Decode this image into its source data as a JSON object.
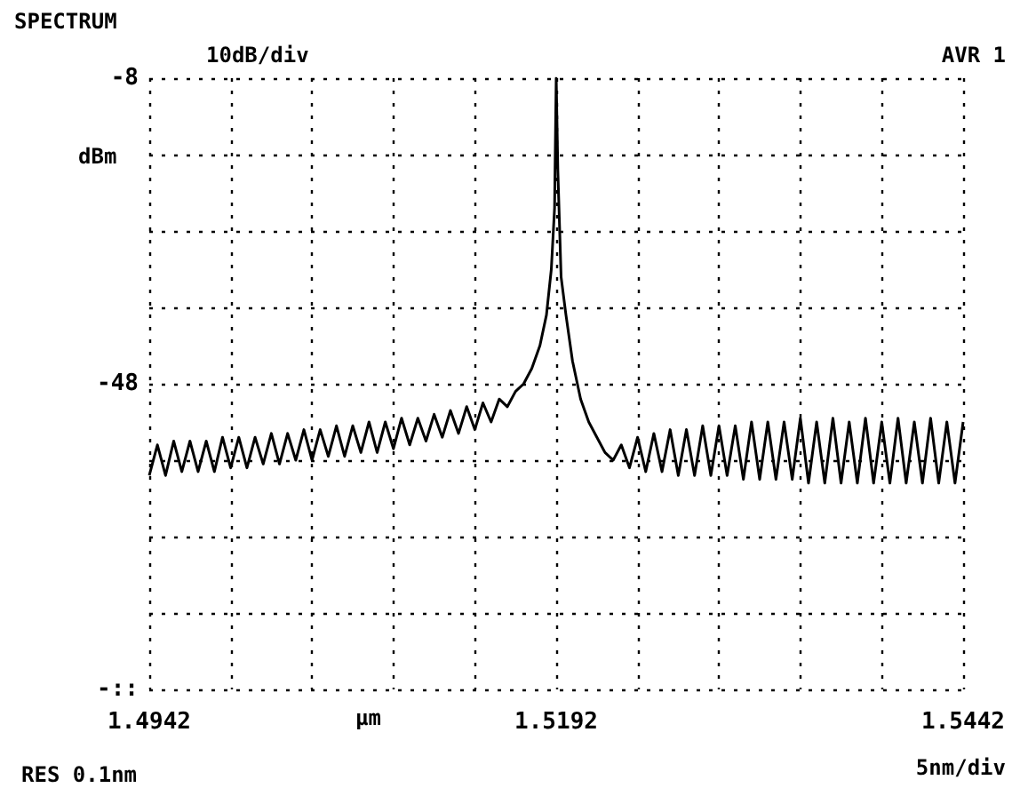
{
  "chart_data": {
    "type": "line",
    "title": "SPECTRUM",
    "xlabel": "µm",
    "ylabel": "dBm",
    "annotations": [
      "10dB/div",
      "AVR 1",
      "RES 0.1nm",
      "5nm/div"
    ],
    "x": [
      1.4942,
      1.4947,
      1.4952,
      1.4957,
      1.4962,
      1.4967,
      1.4972,
      1.4977,
      1.4982,
      1.4987,
      1.4992,
      1.4997,
      1.5002,
      1.5007,
      1.5012,
      1.5017,
      1.5022,
      1.5027,
      1.5032,
      1.5037,
      1.5042,
      1.5047,
      1.5052,
      1.5057,
      1.5062,
      1.5067,
      1.5072,
      1.5077,
      1.5082,
      1.5087,
      1.5092,
      1.5097,
      1.5102,
      1.5107,
      1.5112,
      1.5117,
      1.5122,
      1.5127,
      1.5132,
      1.5137,
      1.5142,
      1.5147,
      1.5152,
      1.5157,
      1.5162,
      1.5167,
      1.5172,
      1.5177,
      1.5182,
      1.5186,
      1.5189,
      1.5191,
      1.5192,
      1.5193,
      1.5195,
      1.5198,
      1.5202,
      1.5207,
      1.5212,
      1.5217,
      1.5222,
      1.5227,
      1.5232,
      1.5237,
      1.5242,
      1.5247,
      1.5252,
      1.5257,
      1.5262,
      1.5267,
      1.5272,
      1.5277,
      1.5282,
      1.5287,
      1.5292,
      1.5297,
      1.5302,
      1.5307,
      1.5312,
      1.5317,
      1.5322,
      1.5327,
      1.5332,
      1.5337,
      1.5342,
      1.5347,
      1.5352,
      1.5357,
      1.5362,
      1.5367,
      1.5372,
      1.5377,
      1.5382,
      1.5387,
      1.5392,
      1.5397,
      1.5402,
      1.5407,
      1.5412,
      1.5417,
      1.5422,
      1.5427,
      1.5432,
      1.5437,
      1.5442
    ],
    "series": [
      {
        "color": "#000000",
        "values": [
          -60,
          -56,
          -60,
          -55.5,
          -59.5,
          -55.5,
          -59.5,
          -55.5,
          -59.5,
          -55,
          -59,
          -55,
          -59,
          -55,
          -58.5,
          -54.5,
          -58.5,
          -54.5,
          -58,
          -54,
          -58,
          -54,
          -57.5,
          -53.5,
          -57.5,
          -53.5,
          -57,
          -53,
          -57,
          -53,
          -56.5,
          -52.5,
          -56,
          -52.5,
          -55.5,
          -52,
          -55,
          -51.5,
          -54.5,
          -51,
          -54,
          -50.5,
          -53,
          -50,
          -51,
          -49,
          -48,
          -46,
          -43,
          -39,
          -33,
          -25,
          -8,
          -20,
          -34,
          -39,
          -45,
          -50,
          -53,
          -55,
          -57,
          -58,
          -56,
          -59,
          -55,
          -59.5,
          -54.5,
          -59.5,
          -54,
          -60,
          -54,
          -60,
          -53.5,
          -60,
          -53.5,
          -60,
          -53.5,
          -60.5,
          -53,
          -60.5,
          -53,
          -60.5,
          -53,
          -60.5,
          -52.5,
          -61,
          -53,
          -61,
          -52.5,
          -61,
          -53,
          -61,
          -52.5,
          -61,
          -53,
          -61,
          -52.5,
          -61,
          -53,
          -61,
          -52.5,
          -61,
          -53,
          -61,
          -53
        ]
      }
    ],
    "xlim": [
      1.4942,
      1.5442
    ],
    "xticks": [
      1.4942,
      {
        "value": 1.4992,
        "label": null
      },
      {
        "value": 1.5042,
        "label": null
      },
      {
        "value": 1.5092,
        "label": null
      },
      {
        "value": 1.5142,
        "label": null
      },
      1.5192,
      {
        "value": 1.5242,
        "label": null
      },
      {
        "value": 1.5292,
        "label": null
      },
      {
        "value": 1.5342,
        "label": null
      },
      {
        "value": 1.5392,
        "label": null
      },
      1.5442
    ],
    "ylim": [
      -88,
      -8
    ],
    "yticks": [
      {
        "value": -88,
        "label": "-::"
      },
      {
        "value": -78,
        "label": null
      },
      {
        "value": -68,
        "label": null
      },
      {
        "value": -58,
        "label": null
      },
      -48,
      {
        "value": -38,
        "label": null
      },
      {
        "value": -28,
        "label": null
      },
      {
        "value": -18,
        "label": null
      },
      -8
    ],
    "grid": true,
    "line_style": "solid",
    "marker": "none"
  }
}
